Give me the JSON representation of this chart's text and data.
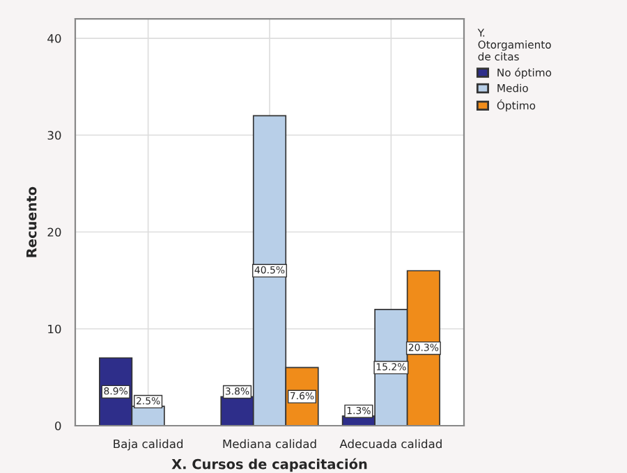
{
  "chart_data": {
    "type": "bar",
    "xlabel": "X. Cursos de capacitación",
    "ylabel": "Recuento",
    "legend_title": "Y.\nOtorgamiento\nde citas",
    "categories": [
      "Baja calidad",
      "Mediana calidad",
      "Adecuada calidad"
    ],
    "series": [
      {
        "name": "No óptimo",
        "color": "#2e2e8a",
        "values": [
          7,
          3,
          1
        ]
      },
      {
        "name": "Medio",
        "color": "#b8cfe8",
        "values": [
          2,
          32,
          12
        ]
      },
      {
        "name": "Óptimo",
        "color": "#f08c1a",
        "values": [
          null,
          6,
          16
        ]
      }
    ],
    "annotations": [
      "8.9%",
      "3.8%",
      "1.3%",
      "2.5%",
      "40.5%",
      "15.2%",
      "7.6%",
      "20.3%"
    ],
    "ylim": [
      0,
      42
    ],
    "yticks": [
      0,
      10,
      20,
      30,
      40
    ],
    "grid": true,
    "legend": "top right"
  }
}
